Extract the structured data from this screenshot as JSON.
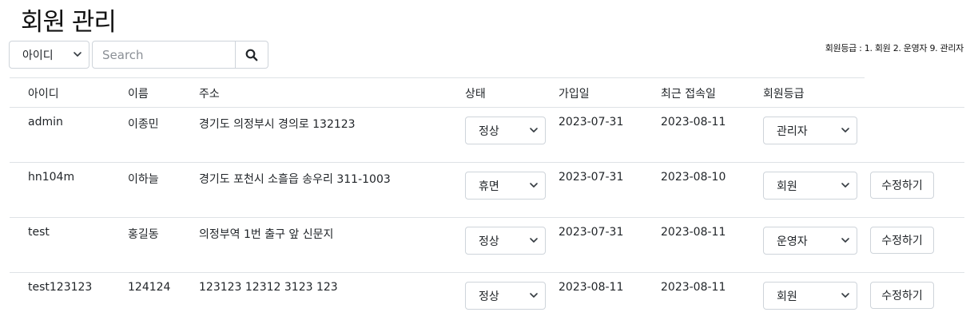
{
  "page": {
    "title": "회원 관리"
  },
  "search": {
    "field_selected": "아이디",
    "placeholder": "Search",
    "value": ""
  },
  "legend": {
    "grade_text": "회원등급 : 1. 회원 2. 운영자 9. 관리자"
  },
  "table": {
    "headers": {
      "id": "아이디",
      "name": "이름",
      "address": "주소",
      "status": "상태",
      "join_date": "가입일",
      "last_login": "최근 접속일",
      "grade": "회원등급"
    },
    "rows": [
      {
        "id": "admin",
        "name": "이종민",
        "address": "경기도 의정부시 경의로 132123",
        "status": "정상",
        "join_date": "2023-07-31",
        "last_login": "2023-08-11",
        "grade": "관리자",
        "edit_label": ""
      },
      {
        "id": "hn104m",
        "name": "이하늘",
        "address": "경기도 포천시 소흘읍 송우리 311-1003",
        "status": "휴면",
        "join_date": "2023-07-31",
        "last_login": "2023-08-10",
        "grade": "회원",
        "edit_label": "수정하기"
      },
      {
        "id": "test",
        "name": "홍길동",
        "address": "의정부역 1번 출구 앞 신문지",
        "status": "정상",
        "join_date": "2023-07-31",
        "last_login": "2023-08-11",
        "grade": "운영자",
        "edit_label": "수정하기"
      },
      {
        "id": "test123123",
        "name": "124124",
        "address": "123123 12312 3123 123",
        "status": "정상",
        "join_date": "2023-08-11",
        "last_login": "2023-08-11",
        "grade": "회원",
        "edit_label": "수정하기"
      }
    ]
  },
  "icons": {
    "search": "search-icon",
    "caret": "chevron-down-icon"
  },
  "colors": {
    "border": "#ced4da",
    "divider": "#dee2e6",
    "text": "#212529"
  }
}
